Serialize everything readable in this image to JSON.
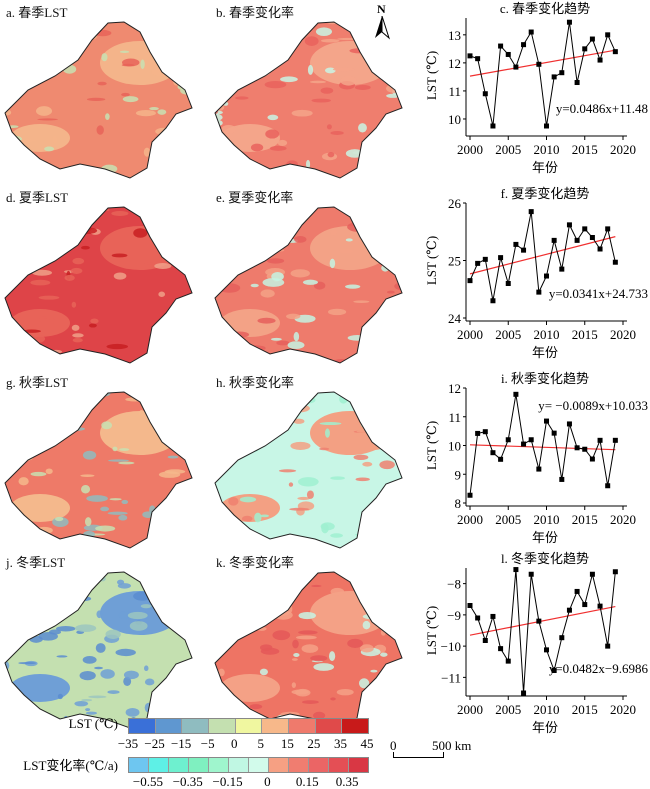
{
  "maps": [
    {
      "label": "a. 春季LST",
      "colors": [
        "#ef8a70",
        "#f4b48a",
        "#c8e0b2",
        "#e86358"
      ]
    },
    {
      "label": "b. 春季变化率",
      "colors": [
        "#ef7e6e",
        "#f4a58a",
        "#c9f5e4",
        "#e9615d"
      ]
    },
    {
      "label": "d. 夏季LST",
      "colors": [
        "#de4448",
        "#e86358",
        "#f0a088",
        "#c81f22"
      ]
    },
    {
      "label": "e. 夏季变化率",
      "colors": [
        "#ee7b6c",
        "#f3a286",
        "#c4f3e2",
        "#e55f5c"
      ]
    },
    {
      "label": "g. 秋季LST",
      "colors": [
        "#ee7a68",
        "#f4b88c",
        "#c8e0b2",
        "#8fbcc0"
      ]
    },
    {
      "label": "h. 秋季变化率",
      "colors": [
        "#c8f6e6",
        "#f3a083",
        "#9ff0d0",
        "#ee8070"
      ]
    },
    {
      "label": "j. 冬季LST",
      "colors": [
        "#c4e0b0",
        "#6f9fd6",
        "#9cc6c0",
        "#5a8cd0"
      ]
    },
    {
      "label": "k. 冬季变化率",
      "colors": [
        "#ee7464",
        "#f4a186",
        "#c8f5e4",
        "#e45858"
      ]
    }
  ],
  "north_label": "N",
  "chart_data": [
    {
      "type": "line",
      "title": "c. 春季变化趋势",
      "xlabel": "年份",
      "ylabel": "LST (℃)",
      "x": [
        2000,
        2001,
        2002,
        2003,
        2004,
        2005,
        2006,
        2007,
        2008,
        2009,
        2010,
        2011,
        2012,
        2013,
        2014,
        2015,
        2016,
        2017,
        2018,
        2019
      ],
      "values": [
        12.25,
        12.15,
        10.9,
        9.75,
        12.6,
        12.3,
        11.85,
        12.65,
        13.1,
        11.95,
        9.75,
        11.5,
        11.65,
        13.45,
        11.3,
        12.5,
        12.85,
        12.1,
        13.0,
        12.4
      ],
      "ylim": [
        9.5,
        13.6
      ],
      "yticks": [
        "10",
        "11",
        "12",
        "13"
      ],
      "ytickvals": [
        10,
        11,
        12,
        13
      ],
      "xticks": [
        "2000",
        "2005",
        "2010",
        "2015",
        "2020"
      ],
      "trend": {
        "slope": 0.0486,
        "intercept": 11.48
      },
      "equation": "y=0.0486x+11.48",
      "eqpos": "bottom-right"
    },
    {
      "type": "line",
      "title": "f. 夏季变化趋势",
      "xlabel": "年份",
      "ylabel": "LST (℃)",
      "x": [
        2000,
        2001,
        2002,
        2003,
        2004,
        2005,
        2006,
        2007,
        2008,
        2009,
        2010,
        2011,
        2012,
        2013,
        2014,
        2015,
        2016,
        2017,
        2018,
        2019
      ],
      "values": [
        24.65,
        24.95,
        25.02,
        24.3,
        25.05,
        24.6,
        25.28,
        25.18,
        25.85,
        24.45,
        24.73,
        25.35,
        24.85,
        25.62,
        25.35,
        25.55,
        25.4,
        25.2,
        25.55,
        24.97
      ],
      "ylim": [
        24,
        26
      ],
      "yticks": [
        "24",
        "25",
        "26"
      ],
      "ytickvals": [
        24,
        25,
        26
      ],
      "xticks": [
        "2000",
        "2005",
        "2010",
        "2015",
        "2020"
      ],
      "trend": {
        "slope": 0.0341,
        "intercept": 24.733
      },
      "equation": "y=0.0341x+24.733",
      "eqpos": "bottom-right"
    },
    {
      "type": "line",
      "title": "i. 秋季变化趋势",
      "xlabel": "年份",
      "ylabel": "LST (℃)",
      "x": [
        2000,
        2001,
        2002,
        2003,
        2004,
        2005,
        2006,
        2007,
        2008,
        2009,
        2010,
        2011,
        2012,
        2013,
        2014,
        2015,
        2016,
        2017,
        2018,
        2019
      ],
      "values": [
        8.27,
        10.42,
        10.48,
        9.75,
        9.52,
        10.2,
        11.78,
        10.05,
        10.2,
        9.18,
        10.85,
        10.43,
        8.82,
        10.75,
        9.92,
        9.87,
        9.53,
        10.18,
        8.6,
        10.18
      ],
      "ylim": [
        8,
        12
      ],
      "yticks": [
        "8",
        "9",
        "10",
        "11",
        "12"
      ],
      "ytickvals": [
        8,
        9,
        10,
        11,
        12
      ],
      "xticks": [
        "2000",
        "2005",
        "2010",
        "2015",
        "2020"
      ],
      "trend": {
        "slope": -0.0089,
        "intercept": 10.033
      },
      "equation": "y= −0.0089x+10.033",
      "eqpos": "top-right"
    },
    {
      "type": "line",
      "title": "l. 冬季变化趋势",
      "xlabel": "年份",
      "ylabel": "LST (℃)",
      "x": [
        2000,
        2001,
        2002,
        2003,
        2004,
        2005,
        2006,
        2007,
        2008,
        2009,
        2010,
        2011,
        2012,
        2013,
        2014,
        2015,
        2016,
        2017,
        2018,
        2019
      ],
      "values": [
        -8.7,
        -9.1,
        -9.82,
        -9.05,
        -10.08,
        -10.48,
        -7.55,
        -11.5,
        -7.7,
        -9.2,
        -10.12,
        -10.78,
        -9.73,
        -8.85,
        -8.25,
        -8.67,
        -7.7,
        -8.72,
        -10.0,
        -7.62
      ],
      "ylim": [
        -11.5,
        -7.5
      ],
      "yticks": [
        "−8",
        "−9",
        "−10",
        "−11"
      ],
      "ytickvals": [
        -8,
        -9,
        -10,
        -11
      ],
      "xticks": [
        "2000",
        "2005",
        "2010",
        "2015",
        "2020"
      ],
      "trend": {
        "slope": 0.0482,
        "intercept": -9.6986
      },
      "equation": "y=0.0482x−9.6986",
      "eqpos": "bottom-right"
    }
  ],
  "legend": {
    "lst": {
      "label": "LST (℃)",
      "colors": [
        "#3a70d8",
        "#5f97d0",
        "#8fbcc0",
        "#c4e0b0",
        "#f0f7a0",
        "#f7b88a",
        "#ef7a6c",
        "#e04a4a",
        "#c81a1a"
      ],
      "ticks": [
        "−35",
        "−25",
        "−15",
        "−5",
        "0",
        "5",
        "15",
        "25",
        "35",
        "45"
      ]
    },
    "rate": {
      "label": "LST变化率(℃/a)",
      "colors": [
        "#6ec6f0",
        "#5ef0e6",
        "#6ef0cf",
        "#7ff0c0",
        "#9ff5cd",
        "#c0f7e3",
        "#d2fbeb",
        "#f6a083",
        "#f07d70",
        "#eb6565",
        "#e44f55",
        "#d93744"
      ],
      "ticks": [
        "−0.55",
        "−0.35",
        "−0.15",
        "0",
        "0.15",
        "0.35"
      ]
    }
  },
  "scalebar": {
    "zero": "0",
    "label": "500 km"
  }
}
